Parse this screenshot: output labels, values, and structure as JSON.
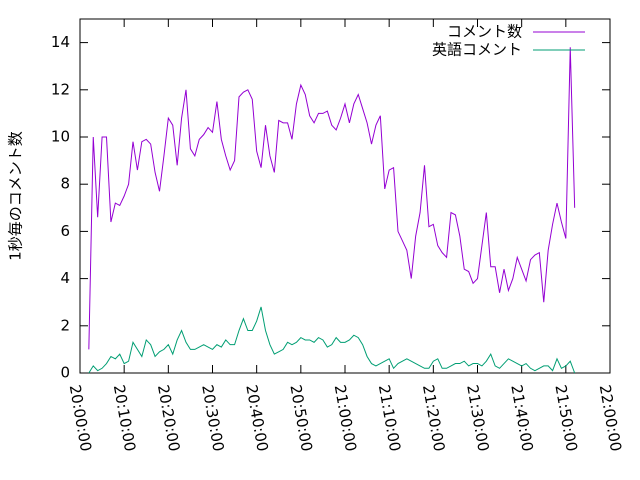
{
  "chart_data": {
    "type": "line",
    "y_label": "1秒毎のコメント数",
    "x": [
      "20:02:00",
      "20:03:00",
      "20:04:00",
      "20:05:00",
      "20:06:00",
      "20:07:00",
      "20:08:00",
      "20:09:00",
      "20:10:00",
      "20:11:00",
      "20:12:00",
      "20:13:00",
      "20:14:00",
      "20:15:00",
      "20:16:00",
      "20:17:00",
      "20:18:00",
      "20:19:00",
      "20:20:00",
      "20:21:00",
      "20:22:00",
      "20:23:00",
      "20:24:00",
      "20:25:00",
      "20:26:00",
      "20:27:00",
      "20:28:00",
      "20:29:00",
      "20:30:00",
      "20:31:00",
      "20:32:00",
      "20:33:00",
      "20:34:00",
      "20:35:00",
      "20:36:00",
      "20:37:00",
      "20:38:00",
      "20:39:00",
      "20:40:00",
      "20:41:00",
      "20:42:00",
      "20:43:00",
      "20:44:00",
      "20:45:00",
      "20:46:00",
      "20:47:00",
      "20:48:00",
      "20:49:00",
      "20:50:00",
      "20:51:00",
      "20:52:00",
      "20:53:00",
      "20:54:00",
      "20:55:00",
      "20:56:00",
      "20:57:00",
      "20:58:00",
      "20:59:00",
      "21:00:00",
      "21:01:00",
      "21:02:00",
      "21:03:00",
      "21:04:00",
      "21:05:00",
      "21:06:00",
      "21:07:00",
      "21:08:00",
      "21:09:00",
      "21:10:00",
      "21:11:00",
      "21:12:00",
      "21:13:00",
      "21:14:00",
      "21:15:00",
      "21:16:00",
      "21:17:00",
      "21:18:00",
      "21:19:00",
      "21:20:00",
      "21:21:00",
      "21:22:00",
      "21:23:00",
      "21:24:00",
      "21:25:00",
      "21:26:00",
      "21:27:00",
      "21:28:00",
      "21:29:00",
      "21:30:00",
      "21:31:00",
      "21:32:00",
      "21:33:00",
      "21:34:00",
      "21:35:00",
      "21:36:00",
      "21:37:00",
      "21:38:00",
      "21:39:00",
      "21:40:00",
      "21:41:00",
      "21:42:00",
      "21:43:00",
      "21:44:00",
      "21:45:00",
      "21:46:00",
      "21:47:00",
      "21:48:00",
      "21:49:00",
      "21:50:00",
      "21:51:00",
      "21:52:00"
    ],
    "series": [
      {
        "name": "コメント数",
        "color": "#9400d3",
        "values": [
          1.0,
          10,
          6.6,
          10,
          10,
          6.4,
          7.2,
          7.1,
          7.5,
          8,
          9.8,
          8.6,
          9.8,
          9.9,
          9.7,
          8.5,
          7.7,
          9.2,
          10.8,
          10.5,
          8.8,
          10.8,
          12,
          9.5,
          9.2,
          9.9,
          10.1,
          10.4,
          10.2,
          11.5,
          9.9,
          9.2,
          8.6,
          9,
          11.7,
          11.9,
          12,
          11.6,
          9.4,
          8.7,
          10.5,
          9.2,
          8.5,
          10.7,
          10.6,
          10.6,
          9.9,
          11.4,
          12.2,
          11.8,
          10.9,
          10.6,
          11,
          11,
          11.1,
          10.5,
          10.3,
          10.8,
          11.4,
          10.6,
          11.4,
          11.8,
          11.2,
          10.6,
          9.7,
          10.5,
          10.9,
          7.8,
          8.6,
          8.7,
          6,
          5.6,
          5.2,
          4,
          5.8,
          6.8,
          8.8,
          6.2,
          6.3,
          5.4,
          5.1,
          4.9,
          6.8,
          6.7,
          5.8,
          4.4,
          4.3,
          3.8,
          4,
          5.4,
          6.8,
          4.5,
          4.5,
          3.4,
          4.4,
          3.5,
          4,
          4.9,
          4.4,
          3.9,
          4.8,
          5,
          5.1,
          3,
          5.2,
          6.3,
          7.2,
          6.4,
          5.7,
          13.8,
          7
        ]
      },
      {
        "name": "英語コメント",
        "color": "#009e73",
        "values": [
          0,
          0.3,
          0.1,
          0.2,
          0.4,
          0.7,
          0.6,
          0.8,
          0.4,
          0.5,
          1.3,
          1.0,
          0.7,
          1.4,
          1.2,
          0.7,
          0.9,
          1.0,
          1.2,
          0.8,
          1.4,
          1.8,
          1.3,
          1.0,
          1.0,
          1.1,
          1.2,
          1.1,
          1.0,
          1.2,
          1.1,
          1.4,
          1.2,
          1.2,
          1.8,
          2.3,
          1.8,
          1.8,
          2.2,
          2.8,
          1.8,
          1.2,
          0.8,
          0.9,
          1.0,
          1.3,
          1.2,
          1.3,
          1.5,
          1.4,
          1.4,
          1.3,
          1.5,
          1.4,
          1.1,
          1.2,
          1.5,
          1.3,
          1.3,
          1.4,
          1.6,
          1.5,
          1.2,
          0.7,
          0.4,
          0.3,
          0.4,
          0.5,
          0.6,
          0.2,
          0.4,
          0.5,
          0.6,
          0.5,
          0.4,
          0.3,
          0.2,
          0.2,
          0.5,
          0.6,
          0.2,
          0.2,
          0.3,
          0.4,
          0.4,
          0.5,
          0.3,
          0.4,
          0.4,
          0.3,
          0.5,
          0.8,
          0.3,
          0.2,
          0.4,
          0.6,
          0.5,
          0.4,
          0.3,
          0.4,
          0.2,
          0.1,
          0.2,
          0.3,
          0.3,
          0.1,
          0.6,
          0.2,
          0.3,
          0.5,
          0.0
        ]
      }
    ],
    "xlim": [
      "20:00:00",
      "22:00:00"
    ],
    "xticks": [
      "20:00:00",
      "20:10:00",
      "20:20:00",
      "20:30:00",
      "20:40:00",
      "20:50:00",
      "21:00:00",
      "21:10:00",
      "21:20:00",
      "21:30:00",
      "21:40:00",
      "21:50:00",
      "22:00:00"
    ],
    "ylim": [
      0,
      15
    ],
    "yticks": [
      0,
      2,
      4,
      6,
      8,
      10,
      12,
      14
    ],
    "legend": "top-right"
  }
}
